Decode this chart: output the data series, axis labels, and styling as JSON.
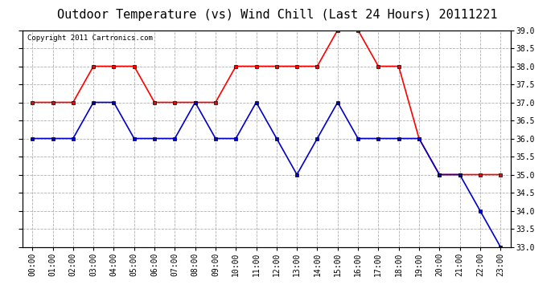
{
  "title": "Outdoor Temperature (vs) Wind Chill (Last 24 Hours) 20111221",
  "copyright": "Copyright 2011 Cartronics.com",
  "x_labels": [
    "00:00",
    "01:00",
    "02:00",
    "03:00",
    "04:00",
    "05:00",
    "06:00",
    "07:00",
    "08:00",
    "09:00",
    "10:00",
    "11:00",
    "12:00",
    "13:00",
    "14:00",
    "15:00",
    "16:00",
    "17:00",
    "18:00",
    "19:00",
    "20:00",
    "21:00",
    "22:00",
    "23:00"
  ],
  "red_data": [
    37.0,
    37.0,
    37.0,
    38.0,
    38.0,
    38.0,
    37.0,
    37.0,
    37.0,
    37.0,
    38.0,
    38.0,
    38.0,
    38.0,
    38.0,
    39.0,
    39.0,
    38.0,
    38.0,
    36.0,
    35.0,
    35.0,
    35.0,
    35.0
  ],
  "blue_data": [
    36.0,
    36.0,
    36.0,
    37.0,
    37.0,
    36.0,
    36.0,
    36.0,
    37.0,
    36.0,
    36.0,
    37.0,
    36.0,
    35.0,
    36.0,
    37.0,
    36.0,
    36.0,
    36.0,
    36.0,
    35.0,
    35.0,
    34.0,
    33.0
  ],
  "red_color": "#ff0000",
  "blue_color": "#0000cc",
  "bg_color": "#ffffff",
  "plot_bg_color": "#ffffff",
  "grid_color": "#b0b0b0",
  "ylim_min": 33.0,
  "ylim_max": 39.0,
  "yticks": [
    33.0,
    33.5,
    34.0,
    34.5,
    35.0,
    35.5,
    36.0,
    36.5,
    37.0,
    37.5,
    38.0,
    38.5,
    39.0
  ],
  "title_fontsize": 11,
  "copyright_fontsize": 6.5,
  "axis_fontsize": 7,
  "marker": "s",
  "markersize": 3.5,
  "linewidth": 1.2
}
